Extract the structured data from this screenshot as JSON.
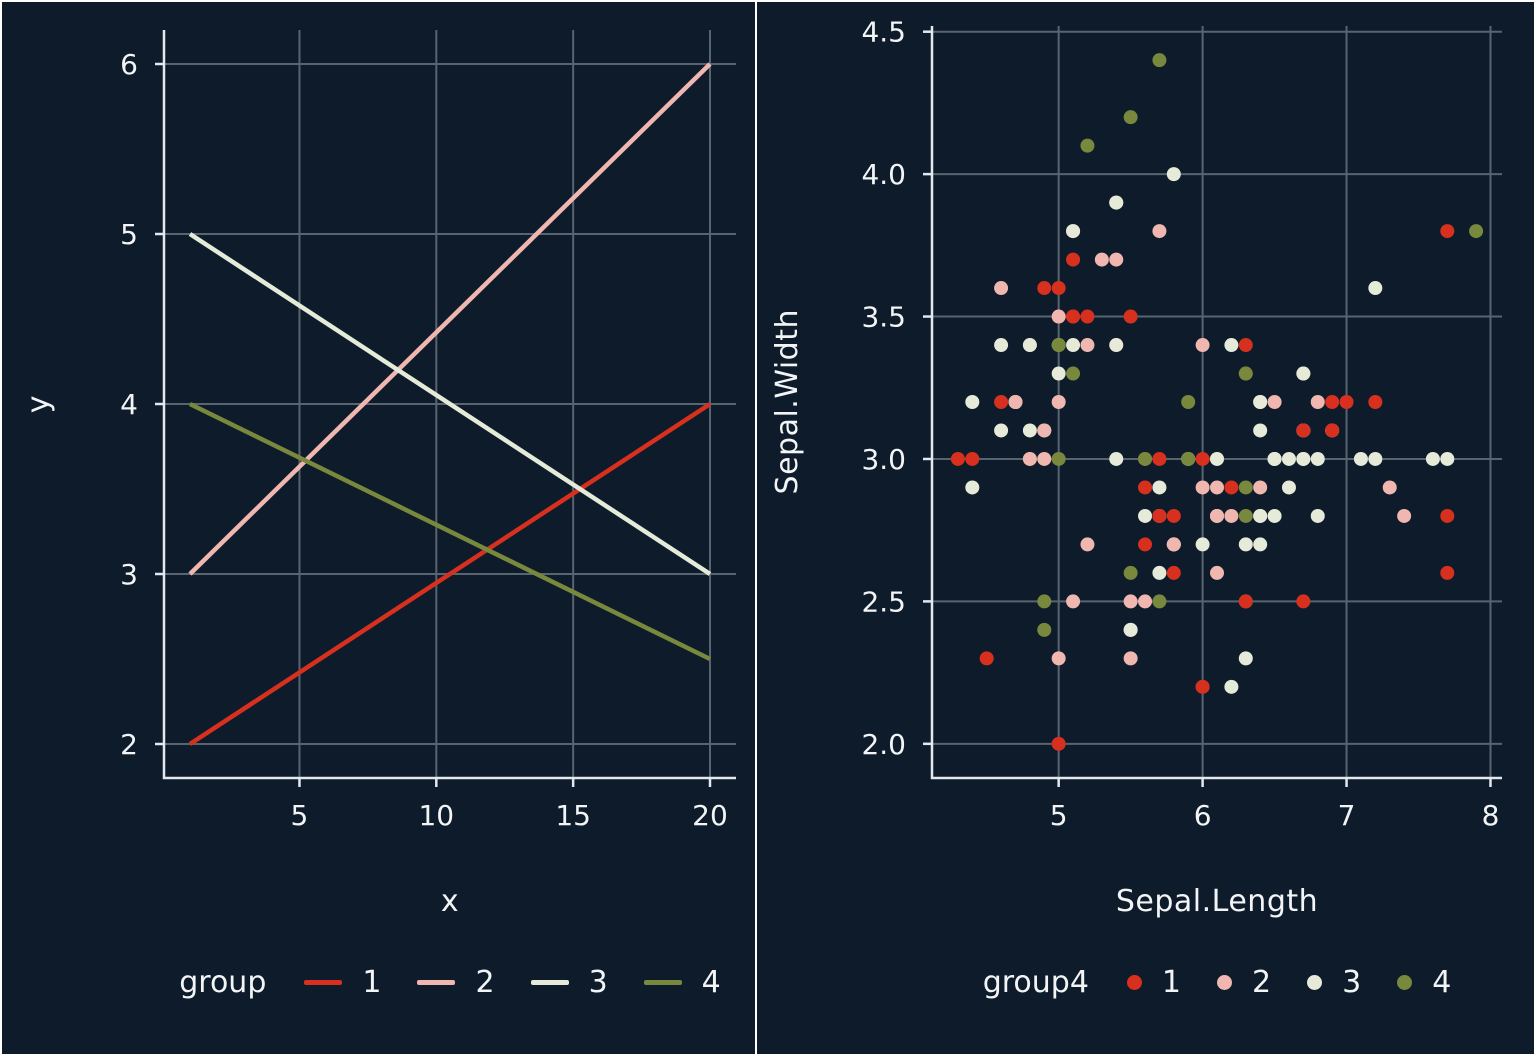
{
  "theme": {
    "background": "#0d1b2b",
    "grid_color": "#58646f",
    "axis_line_color": "#e4e8ec",
    "axis_text_color": "#f2f4f6",
    "divider_color": "#ffffff",
    "palette": {
      "1": "#d7301f",
      "2": "#f0b6b0",
      "3": "#e5ebd8",
      "4": "#78883c"
    }
  },
  "chart_data": [
    {
      "type": "line",
      "title": "",
      "xlabel": "x",
      "ylabel": "y",
      "xlim": [
        0.05,
        20.95
      ],
      "ylim": [
        1.8,
        6.2
      ],
      "grid": true,
      "legend_position": "bottom",
      "legend_title": "group",
      "legend_entries": [
        "1",
        "2",
        "3",
        "4"
      ],
      "x_ticks": [
        {
          "value": 5,
          "label": "5"
        },
        {
          "value": 10,
          "label": "10"
        },
        {
          "value": 15,
          "label": "15"
        },
        {
          "value": 20,
          "label": "20"
        }
      ],
      "y_ticks": [
        {
          "value": 2,
          "label": "2"
        },
        {
          "value": 3,
          "label": "3"
        },
        {
          "value": 4,
          "label": "4"
        },
        {
          "value": 5,
          "label": "5"
        },
        {
          "value": 6,
          "label": "6"
        }
      ],
      "series": [
        {
          "name": "1",
          "points": [
            [
              1,
              2
            ],
            [
              20,
              4
            ]
          ]
        },
        {
          "name": "2",
          "points": [
            [
              1,
              3
            ],
            [
              20,
              6
            ]
          ]
        },
        {
          "name": "3",
          "points": [
            [
              1,
              5
            ],
            [
              20,
              3
            ]
          ]
        },
        {
          "name": "4",
          "points": [
            [
              1,
              4
            ],
            [
              20,
              2.5
            ]
          ]
        }
      ]
    },
    {
      "type": "scatter",
      "title": "",
      "xlabel": "Sepal.Length",
      "ylabel": "Sepal.Width",
      "xlim": [
        4.12,
        8.08
      ],
      "ylim": [
        1.88,
        4.52
      ],
      "grid": true,
      "legend_position": "bottom",
      "legend_title": "group4",
      "legend_entries": [
        "1",
        "2",
        "3",
        "4"
      ],
      "x_ticks": [
        {
          "value": 5,
          "label": "5"
        },
        {
          "value": 6,
          "label": "6"
        },
        {
          "value": 7,
          "label": "7"
        },
        {
          "value": 8,
          "label": "8"
        }
      ],
      "y_ticks": [
        {
          "value": 2.0,
          "label": "2.0"
        },
        {
          "value": 2.5,
          "label": "2.5"
        },
        {
          "value": 3.0,
          "label": "3.0"
        },
        {
          "value": 3.5,
          "label": "3.5"
        },
        {
          "value": 4.0,
          "label": "4.0"
        },
        {
          "value": 4.5,
          "label": "4.5"
        }
      ],
      "points": [
        [
          5.1,
          3.5,
          1
        ],
        [
          4.9,
          3.0,
          2
        ],
        [
          4.7,
          3.2,
          3
        ],
        [
          4.6,
          3.1,
          3
        ],
        [
          5.0,
          3.6,
          1
        ],
        [
          5.4,
          3.9,
          3
        ],
        [
          4.6,
          3.4,
          3
        ],
        [
          5.0,
          3.4,
          2
        ],
        [
          4.4,
          2.9,
          3
        ],
        [
          4.9,
          3.1,
          3
        ],
        [
          5.4,
          3.7,
          2
        ],
        [
          4.8,
          3.4,
          4
        ],
        [
          4.8,
          3.0,
          4
        ],
        [
          4.3,
          3.0,
          1
        ],
        [
          5.8,
          4.0,
          3
        ],
        [
          5.7,
          4.4,
          4
        ],
        [
          5.4,
          3.9,
          3
        ],
        [
          5.1,
          3.5,
          1
        ],
        [
          5.7,
          3.8,
          2
        ],
        [
          5.1,
          3.8,
          2
        ],
        [
          5.4,
          3.4,
          1
        ],
        [
          5.1,
          3.7,
          1
        ],
        [
          4.6,
          3.6,
          2
        ],
        [
          5.1,
          3.3,
          4
        ],
        [
          4.8,
          3.4,
          3
        ],
        [
          5.0,
          3.0,
          4
        ],
        [
          5.0,
          3.4,
          4
        ],
        [
          5.2,
          3.5,
          1
        ],
        [
          5.2,
          3.4,
          2
        ],
        [
          4.7,
          3.2,
          2
        ],
        [
          4.8,
          3.1,
          3
        ],
        [
          5.4,
          3.4,
          3
        ],
        [
          5.2,
          4.1,
          4
        ],
        [
          5.5,
          4.2,
          4
        ],
        [
          4.9,
          3.1,
          2
        ],
        [
          5.0,
          3.2,
          2
        ],
        [
          5.5,
          3.5,
          1
        ],
        [
          4.9,
          3.6,
          1
        ],
        [
          4.4,
          3.0,
          1
        ],
        [
          5.1,
          3.4,
          3
        ],
        [
          5.0,
          3.5,
          1
        ],
        [
          4.5,
          2.3,
          1
        ],
        [
          4.4,
          3.2,
          3
        ],
        [
          5.0,
          3.5,
          2
        ],
        [
          5.1,
          3.8,
          4
        ],
        [
          4.8,
          3.0,
          2
        ],
        [
          5.1,
          3.8,
          3
        ],
        [
          4.6,
          3.2,
          1
        ],
        [
          5.3,
          3.7,
          2
        ],
        [
          5.0,
          3.3,
          3
        ],
        [
          7.0,
          3.2,
          1
        ],
        [
          6.4,
          3.2,
          2
        ],
        [
          6.9,
          3.1,
          1
        ],
        [
          5.5,
          2.3,
          2
        ],
        [
          6.5,
          2.8,
          3
        ],
        [
          5.7,
          2.8,
          2
        ],
        [
          6.3,
          3.3,
          1
        ],
        [
          4.9,
          2.4,
          4
        ],
        [
          6.6,
          2.9,
          3
        ],
        [
          5.2,
          2.7,
          2
        ],
        [
          5.0,
          2.0,
          1
        ],
        [
          5.9,
          3.0,
          3
        ],
        [
          6.0,
          2.2,
          1
        ],
        [
          6.1,
          2.9,
          2
        ],
        [
          5.6,
          2.9,
          1
        ],
        [
          6.7,
          3.1,
          2
        ],
        [
          5.6,
          3.0,
          1
        ],
        [
          5.8,
          2.7,
          1
        ],
        [
          6.2,
          2.2,
          3
        ],
        [
          5.6,
          2.5,
          2
        ],
        [
          5.9,
          3.2,
          4
        ],
        [
          6.1,
          2.8,
          3
        ],
        [
          6.3,
          2.5,
          4
        ],
        [
          6.1,
          2.8,
          2
        ],
        [
          6.4,
          2.9,
          2
        ],
        [
          6.6,
          3.0,
          3
        ],
        [
          6.8,
          2.8,
          3
        ],
        [
          6.7,
          3.0,
          3
        ],
        [
          6.0,
          2.9,
          2
        ],
        [
          5.7,
          2.6,
          3
        ],
        [
          5.5,
          2.4,
          2
        ],
        [
          5.5,
          2.4,
          3
        ],
        [
          5.8,
          2.7,
          4
        ],
        [
          6.0,
          2.7,
          3
        ],
        [
          5.4,
          3.0,
          3
        ],
        [
          6.0,
          3.4,
          2
        ],
        [
          6.7,
          3.1,
          2
        ],
        [
          6.3,
          2.3,
          3
        ],
        [
          5.6,
          3.0,
          4
        ],
        [
          5.5,
          2.5,
          2
        ],
        [
          5.5,
          2.6,
          4
        ],
        [
          6.1,
          3.0,
          1
        ],
        [
          5.8,
          2.6,
          1
        ],
        [
          5.0,
          2.3,
          2
        ],
        [
          5.6,
          2.7,
          1
        ],
        [
          5.7,
          3.0,
          1
        ],
        [
          5.7,
          2.9,
          3
        ],
        [
          6.2,
          2.9,
          1
        ],
        [
          5.1,
          2.5,
          2
        ],
        [
          5.7,
          2.8,
          1
        ],
        [
          6.3,
          3.3,
          4
        ],
        [
          5.8,
          2.7,
          3
        ],
        [
          7.1,
          3.0,
          3
        ],
        [
          6.3,
          2.9,
          4
        ],
        [
          6.5,
          3.0,
          3
        ],
        [
          7.6,
          3.0,
          3
        ],
        [
          4.9,
          2.5,
          4
        ],
        [
          7.3,
          2.9,
          2
        ],
        [
          6.7,
          2.5,
          1
        ],
        [
          7.2,
          3.6,
          3
        ],
        [
          6.5,
          3.2,
          2
        ],
        [
          6.4,
          2.7,
          3
        ],
        [
          6.8,
          3.0,
          3
        ],
        [
          5.7,
          2.5,
          4
        ],
        [
          5.8,
          2.8,
          1
        ],
        [
          6.4,
          3.2,
          3
        ],
        [
          6.5,
          3.0,
          2
        ],
        [
          7.7,
          3.8,
          1
        ],
        [
          7.7,
          2.6,
          1
        ],
        [
          6.0,
          2.2,
          1
        ],
        [
          6.9,
          3.2,
          1
        ],
        [
          5.6,
          2.8,
          3
        ],
        [
          7.7,
          2.8,
          1
        ],
        [
          6.3,
          2.7,
          3
        ],
        [
          6.7,
          3.3,
          2
        ],
        [
          7.2,
          3.2,
          1
        ],
        [
          6.2,
          2.8,
          2
        ],
        [
          6.1,
          3.0,
          3
        ],
        [
          6.4,
          2.8,
          2
        ],
        [
          7.2,
          3.0,
          3
        ],
        [
          7.4,
          2.8,
          2
        ],
        [
          7.9,
          3.8,
          4
        ],
        [
          6.4,
          2.8,
          3
        ],
        [
          6.3,
          2.8,
          4
        ],
        [
          6.1,
          2.6,
          2
        ],
        [
          7.7,
          3.0,
          3
        ],
        [
          6.3,
          3.4,
          1
        ],
        [
          6.4,
          3.1,
          3
        ],
        [
          6.0,
          3.0,
          1
        ],
        [
          6.9,
          3.1,
          2
        ],
        [
          6.7,
          3.1,
          1
        ],
        [
          6.9,
          3.1,
          1
        ],
        [
          5.8,
          2.7,
          2
        ],
        [
          6.8,
          3.2,
          2
        ],
        [
          6.7,
          3.3,
          3
        ],
        [
          6.7,
          3.0,
          3
        ],
        [
          6.3,
          2.5,
          1
        ],
        [
          6.5,
          3.0,
          3
        ],
        [
          6.2,
          3.4,
          3
        ],
        [
          5.9,
          3.0,
          4
        ]
      ]
    }
  ]
}
